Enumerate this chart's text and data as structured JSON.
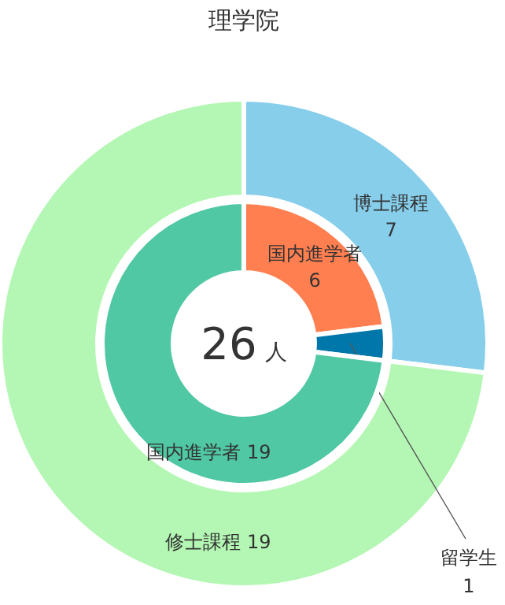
{
  "chart_data": [
    {
      "type": "donut",
      "title": "理学院",
      "categories": [
        "博士課程",
        "修士課程"
      ],
      "values": [
        7,
        19
      ],
      "colors": [
        "#87ceeb",
        "#b4f7b4"
      ],
      "data_labels": true
    },
    {
      "type": "donut",
      "categories": [
        "国内進学者",
        "留学生",
        "国内進学者"
      ],
      "values": [
        6,
        1,
        19
      ],
      "colors": [
        "#ff7f50",
        "#0077aa",
        "#50c8a3"
      ],
      "data_labels": true,
      "annotations": [
        "26",
        "人"
      ]
    }
  ]
}
